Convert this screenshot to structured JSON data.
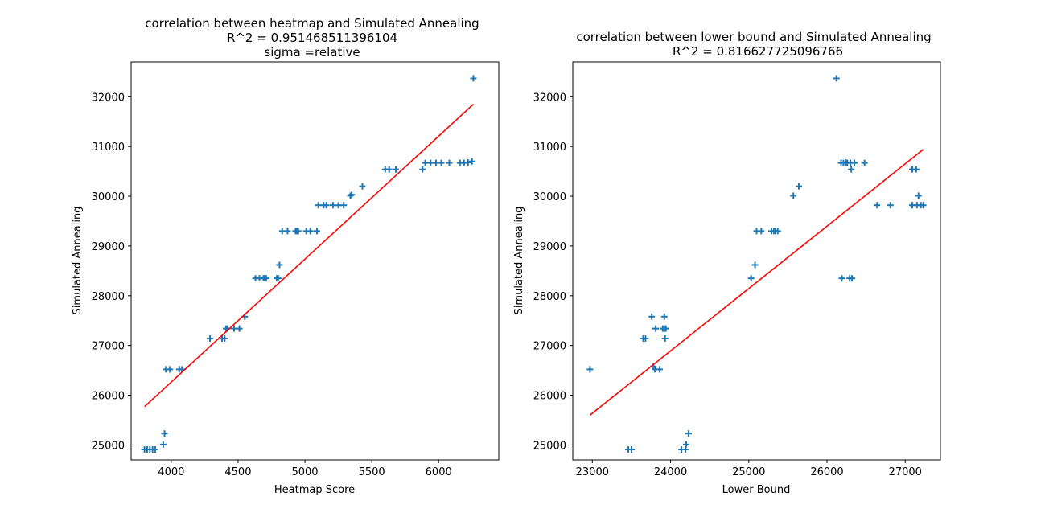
{
  "chart_data": [
    {
      "type": "scatter",
      "title_lines": [
        "correlation between heatmap and Simulated Annealing",
        "R^2 = 0.951468511396104",
        "sigma =relative"
      ],
      "xlabel": "Heatmap Score",
      "ylabel": "Simulated Annealing",
      "xlim": [
        3700,
        6450
      ],
      "ylim": [
        24700,
        32700
      ],
      "xticks": [
        4000,
        4500,
        5000,
        5500,
        6000
      ],
      "yticks": [
        25000,
        26000,
        27000,
        28000,
        29000,
        30000,
        31000,
        32000
      ],
      "marker": "+",
      "marker_color": "#1f77b4",
      "fit_color": "#ff0000",
      "fit_line": {
        "x": [
          3800,
          6260
        ],
        "y": [
          25770,
          31850
        ]
      },
      "points": [
        {
          "x": 3800,
          "y": 24910
        },
        {
          "x": 3820,
          "y": 24910
        },
        {
          "x": 3840,
          "y": 24910
        },
        {
          "x": 3860,
          "y": 24910
        },
        {
          "x": 3880,
          "y": 24910
        },
        {
          "x": 3940,
          "y": 25010
        },
        {
          "x": 3950,
          "y": 25230
        },
        {
          "x": 3960,
          "y": 26520
        },
        {
          "x": 3990,
          "y": 26520
        },
        {
          "x": 4060,
          "y": 26520
        },
        {
          "x": 4080,
          "y": 26520
        },
        {
          "x": 4290,
          "y": 27140
        },
        {
          "x": 4380,
          "y": 27140
        },
        {
          "x": 4400,
          "y": 27140
        },
        {
          "x": 4410,
          "y": 27340
        },
        {
          "x": 4420,
          "y": 27340
        },
        {
          "x": 4470,
          "y": 27340
        },
        {
          "x": 4510,
          "y": 27340
        },
        {
          "x": 4550,
          "y": 27580
        },
        {
          "x": 4630,
          "y": 28350
        },
        {
          "x": 4660,
          "y": 28350
        },
        {
          "x": 4690,
          "y": 28350
        },
        {
          "x": 4700,
          "y": 28350
        },
        {
          "x": 4710,
          "y": 28350
        },
        {
          "x": 4790,
          "y": 28350
        },
        {
          "x": 4800,
          "y": 28350
        },
        {
          "x": 4810,
          "y": 28620
        },
        {
          "x": 4830,
          "y": 29300
        },
        {
          "x": 4870,
          "y": 29300
        },
        {
          "x": 4930,
          "y": 29300
        },
        {
          "x": 4940,
          "y": 29300
        },
        {
          "x": 4950,
          "y": 29300
        },
        {
          "x": 5010,
          "y": 29300
        },
        {
          "x": 5040,
          "y": 29300
        },
        {
          "x": 5090,
          "y": 29300
        },
        {
          "x": 5100,
          "y": 29820
        },
        {
          "x": 5140,
          "y": 29820
        },
        {
          "x": 5160,
          "y": 29820
        },
        {
          "x": 5210,
          "y": 29820
        },
        {
          "x": 5250,
          "y": 29820
        },
        {
          "x": 5290,
          "y": 29820
        },
        {
          "x": 5340,
          "y": 30010
        },
        {
          "x": 5350,
          "y": 30030
        },
        {
          "x": 5430,
          "y": 30200
        },
        {
          "x": 5600,
          "y": 30540
        },
        {
          "x": 5630,
          "y": 30540
        },
        {
          "x": 5680,
          "y": 30540
        },
        {
          "x": 5880,
          "y": 30540
        },
        {
          "x": 5900,
          "y": 30670
        },
        {
          "x": 5940,
          "y": 30670
        },
        {
          "x": 5980,
          "y": 30670
        },
        {
          "x": 6020,
          "y": 30670
        },
        {
          "x": 6080,
          "y": 30670
        },
        {
          "x": 6160,
          "y": 30670
        },
        {
          "x": 6190,
          "y": 30670
        },
        {
          "x": 6220,
          "y": 30680
        },
        {
          "x": 6250,
          "y": 30700
        },
        {
          "x": 6260,
          "y": 32370
        }
      ]
    },
    {
      "type": "scatter",
      "title_lines": [
        "correlation between lower bound and Simulated Annealing",
        "R^2 = 0.816627725096766"
      ],
      "xlabel": "Lower Bound",
      "ylabel": "Simulated Annealing",
      "xlim": [
        22750,
        27450
      ],
      "ylim": [
        24700,
        32700
      ],
      "xticks": [
        23000,
        24000,
        25000,
        26000,
        27000
      ],
      "yticks": [
        25000,
        26000,
        27000,
        28000,
        29000,
        30000,
        31000,
        32000
      ],
      "marker": "+",
      "marker_color": "#1f77b4",
      "fit_color": "#ff0000",
      "fit_line": {
        "x": [
          22970,
          27230
        ],
        "y": [
          25600,
          30940
        ]
      },
      "points": [
        {
          "x": 22970,
          "y": 26520
        },
        {
          "x": 23460,
          "y": 24910
        },
        {
          "x": 23500,
          "y": 24910
        },
        {
          "x": 23650,
          "y": 27140
        },
        {
          "x": 23680,
          "y": 27140
        },
        {
          "x": 23760,
          "y": 27580
        },
        {
          "x": 23780,
          "y": 26580
        },
        {
          "x": 23800,
          "y": 26520
        },
        {
          "x": 23810,
          "y": 27340
        },
        {
          "x": 23860,
          "y": 26520
        },
        {
          "x": 23900,
          "y": 27340
        },
        {
          "x": 23920,
          "y": 27340
        },
        {
          "x": 23930,
          "y": 27140
        },
        {
          "x": 23940,
          "y": 27340
        },
        {
          "x": 23920,
          "y": 27580
        },
        {
          "x": 24140,
          "y": 24910
        },
        {
          "x": 24190,
          "y": 24910
        },
        {
          "x": 24200,
          "y": 25010
        },
        {
          "x": 24230,
          "y": 25230
        },
        {
          "x": 25030,
          "y": 28350
        },
        {
          "x": 25080,
          "y": 28620
        },
        {
          "x": 25100,
          "y": 29300
        },
        {
          "x": 25160,
          "y": 29300
        },
        {
          "x": 25290,
          "y": 29300
        },
        {
          "x": 25320,
          "y": 29300
        },
        {
          "x": 25340,
          "y": 29300
        },
        {
          "x": 25370,
          "y": 29300
        },
        {
          "x": 25570,
          "y": 30010
        },
        {
          "x": 25640,
          "y": 30200
        },
        {
          "x": 26120,
          "y": 32370
        },
        {
          "x": 26180,
          "y": 30670
        },
        {
          "x": 26210,
          "y": 30670
        },
        {
          "x": 26240,
          "y": 30680
        },
        {
          "x": 26260,
          "y": 30670
        },
        {
          "x": 26300,
          "y": 30670
        },
        {
          "x": 26350,
          "y": 30670
        },
        {
          "x": 26480,
          "y": 30670
        },
        {
          "x": 26310,
          "y": 30540
        },
        {
          "x": 26190,
          "y": 28350
        },
        {
          "x": 26290,
          "y": 28350
        },
        {
          "x": 26320,
          "y": 28350
        },
        {
          "x": 26640,
          "y": 29820
        },
        {
          "x": 26810,
          "y": 29820
        },
        {
          "x": 27090,
          "y": 30540
        },
        {
          "x": 27140,
          "y": 30540
        },
        {
          "x": 27090,
          "y": 29820
        },
        {
          "x": 27150,
          "y": 29820
        },
        {
          "x": 27200,
          "y": 29820
        },
        {
          "x": 27230,
          "y": 29820
        },
        {
          "x": 27170,
          "y": 30010
        }
      ]
    }
  ]
}
